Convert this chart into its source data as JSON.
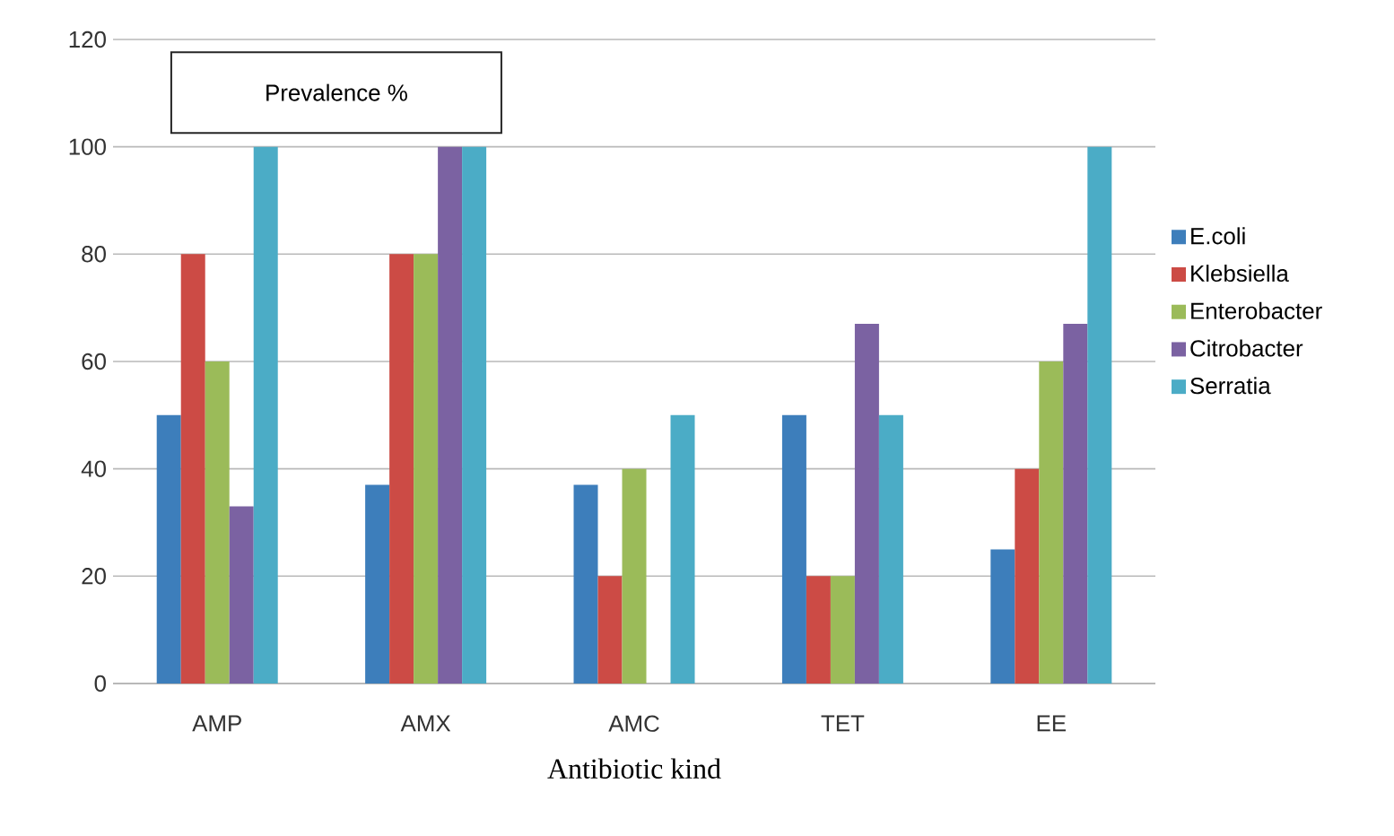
{
  "chart_data": {
    "type": "bar",
    "title": "Prevalence  %",
    "xlabel": "Antibiotic kind",
    "categories": [
      "AMP",
      "AMX",
      "AMC",
      "TET",
      "EE"
    ],
    "series": [
      {
        "name": "E.coli",
        "color": "#3d7ebb",
        "values": [
          50,
          37,
          37,
          50,
          25
        ]
      },
      {
        "name": "Klebsiella",
        "color": "#cc4b45",
        "values": [
          80,
          80,
          20,
          20,
          40
        ]
      },
      {
        "name": "Enterobacter",
        "color": "#9bbb59",
        "values": [
          60,
          80,
          40,
          20,
          60
        ]
      },
      {
        "name": "Citrobacter",
        "color": "#7b62a2",
        "values": [
          33,
          100,
          0,
          67,
          67
        ]
      },
      {
        "name": "Serratia",
        "color": "#4bacc6",
        "values": [
          100,
          100,
          50,
          50,
          100
        ]
      }
    ],
    "ylim": [
      0,
      120
    ],
    "yticks": [
      0,
      20,
      40,
      60,
      80,
      100,
      120
    ],
    "grid": "y",
    "legend": "right"
  }
}
